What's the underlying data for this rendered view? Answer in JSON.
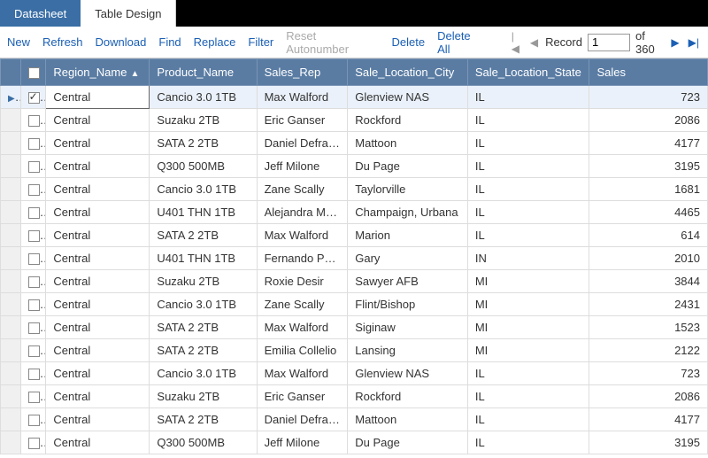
{
  "tabs": {
    "datasheet": "Datasheet",
    "table_design": "Table Design"
  },
  "toolbar": {
    "new": "New",
    "refresh": "Refresh",
    "download": "Download",
    "find": "Find",
    "replace": "Replace",
    "filter": "Filter",
    "reset_autonumber": "Reset Autonumber",
    "delete": "Delete",
    "delete_all": "Delete All",
    "record_label": "Record",
    "record_value": "1",
    "record_total": "of 360"
  },
  "columns": {
    "region": "Region_Name",
    "product": "Product_Name",
    "rep": "Sales_Rep",
    "city": "Sale_Location_City",
    "state": "Sale_Location_State",
    "sales": "Sales"
  },
  "rows": [
    {
      "region": "Central",
      "product": "Cancio 3.0 1TB",
      "rep": "Max Walford",
      "city": "Glenview NAS",
      "state": "IL",
      "sales": "723",
      "selected": true,
      "checked": true
    },
    {
      "region": "Central",
      "product": "Suzaku 2TB",
      "rep": "Eric Ganser",
      "city": "Rockford",
      "state": "IL",
      "sales": "2086"
    },
    {
      "region": "Central",
      "product": "SATA 2 2TB",
      "rep": "Daniel Defrank",
      "city": "Mattoon",
      "state": "IL",
      "sales": "4177"
    },
    {
      "region": "Central",
      "product": "Q300 500MB",
      "rep": "Jeff Milone",
      "city": "Du Page",
      "state": "IL",
      "sales": "3195"
    },
    {
      "region": "Central",
      "product": "Cancio 3.0 1TB",
      "rep": "Zane Scally",
      "city": "Taylorville",
      "state": "IL",
      "sales": "1681"
    },
    {
      "region": "Central",
      "product": "U401 THN 1TB",
      "rep": "Alejandra Maybee",
      "city": "Champaign, Urbana",
      "state": "IL",
      "sales": "4465"
    },
    {
      "region": "Central",
      "product": "SATA 2 2TB",
      "rep": "Max Walford",
      "city": "Marion",
      "state": "IL",
      "sales": "614"
    },
    {
      "region": "Central",
      "product": "U401 THN 1TB",
      "rep": "Fernando Ponds",
      "city": "Gary",
      "state": "IN",
      "sales": "2010"
    },
    {
      "region": "Central",
      "product": "Suzaku 2TB",
      "rep": "Roxie Desir",
      "city": "Sawyer AFB",
      "state": "MI",
      "sales": "3844"
    },
    {
      "region": "Central",
      "product": "Cancio 3.0 1TB",
      "rep": "Zane Scally",
      "city": "Flint/Bishop",
      "state": "MI",
      "sales": "2431"
    },
    {
      "region": "Central",
      "product": "SATA 2 2TB",
      "rep": "Max Walford",
      "city": "Siginaw",
      "state": "MI",
      "sales": "1523"
    },
    {
      "region": "Central",
      "product": "SATA 2 2TB",
      "rep": "Emilia Collelio",
      "city": "Lansing",
      "state": "MI",
      "sales": "2122"
    },
    {
      "region": "Central",
      "product": "Cancio 3.0 1TB",
      "rep": "Max Walford",
      "city": "Glenview NAS",
      "state": "IL",
      "sales": "723"
    },
    {
      "region": "Central",
      "product": "Suzaku 2TB",
      "rep": "Eric Ganser",
      "city": "Rockford",
      "state": "IL",
      "sales": "2086"
    },
    {
      "region": "Central",
      "product": "SATA 2 2TB",
      "rep": "Daniel Defrank",
      "city": "Mattoon",
      "state": "IL",
      "sales": "4177"
    },
    {
      "region": "Central",
      "product": "Q300 500MB",
      "rep": "Jeff Milone",
      "city": "Du Page",
      "state": "IL",
      "sales": "3195"
    }
  ],
  "col_widths": {
    "region": 114,
    "product": 118,
    "rep": 100,
    "city": 132,
    "state": 134,
    "sales": 130
  }
}
